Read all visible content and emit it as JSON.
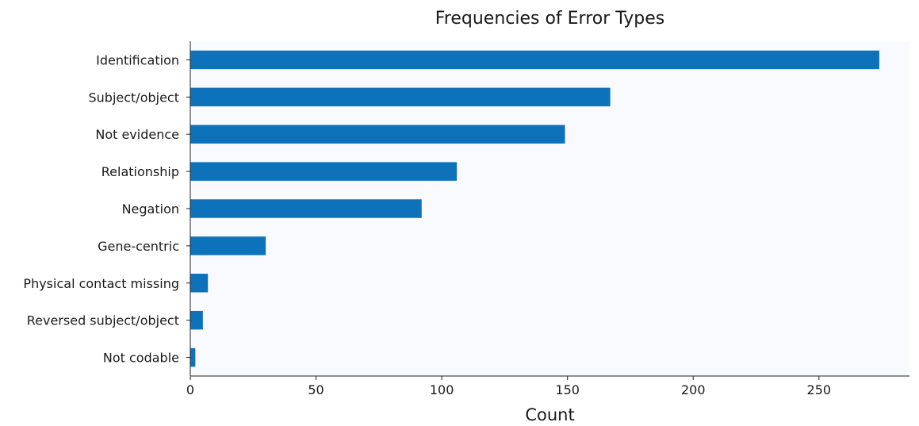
{
  "chart_data": {
    "type": "bar",
    "orientation": "horizontal",
    "title": "Frequencies of Error Types",
    "xlabel": "Count",
    "ylabel": "",
    "categories": [
      "Identification",
      "Subject/object",
      "Not evidence",
      "Relationship",
      "Negation",
      "Gene-centric",
      "Physical contact missing",
      "Reversed subject/object",
      "Not codable"
    ],
    "values": [
      274,
      167,
      149,
      106,
      92,
      30,
      7,
      5,
      2
    ],
    "xlim": [
      0,
      286
    ],
    "xticks": [
      0,
      50,
      100,
      150,
      200,
      250
    ],
    "bar_color": "#0d72ba",
    "plot_background": "#f8fafd",
    "grid": false,
    "legend": "none"
  }
}
